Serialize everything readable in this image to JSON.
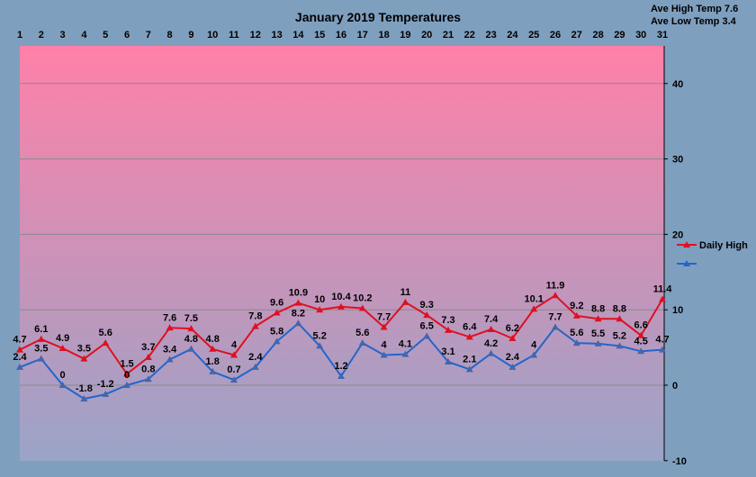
{
  "stats": {
    "ave_high": "Ave High Temp 7.6",
    "ave_low": "Ave Low Temp 3.4"
  },
  "chart_data": {
    "type": "line",
    "title": "January 2019 Temperatures",
    "x": [
      1,
      2,
      3,
      4,
      5,
      6,
      7,
      8,
      9,
      10,
      11,
      12,
      13,
      14,
      15,
      16,
      17,
      18,
      19,
      20,
      21,
      22,
      23,
      24,
      25,
      26,
      27,
      28,
      29,
      30,
      31
    ],
    "ylim": [
      -10,
      45
    ],
    "yticks": [
      -10,
      0,
      10,
      20,
      30,
      40
    ],
    "grid": true,
    "legend_position": "right",
    "background_gradient": [
      "#ff80a8",
      "#9aa4c8"
    ],
    "series": [
      {
        "name": "Daily High",
        "color": "#dd1122",
        "values": [
          4.7,
          6.1,
          4.9,
          3.5,
          5.6,
          1.5,
          3.7,
          7.6,
          7.5,
          4.8,
          4,
          7.8,
          9.6,
          10.9,
          10,
          10.4,
          10.2,
          7.7,
          11,
          9.3,
          7.3,
          6.4,
          7.4,
          6.2,
          10.1,
          11.9,
          9.2,
          8.8,
          8.8,
          6.6,
          11.4
        ]
      },
      {
        "name": "",
        "color": "#2266cc",
        "values": [
          2.4,
          3.5,
          0,
          -1.8,
          -1.2,
          0,
          0.8,
          3.4,
          4.8,
          1.8,
          0.7,
          2.4,
          5.8,
          8.2,
          5.2,
          1.2,
          5.6,
          4,
          4.1,
          6.5,
          3.1,
          2.1,
          4.2,
          2.4,
          4,
          7.7,
          5.6,
          5.5,
          5.2,
          4.5,
          4.7
        ]
      }
    ]
  }
}
